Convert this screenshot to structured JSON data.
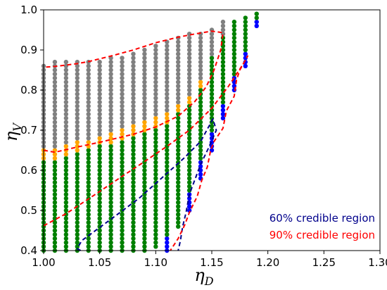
{
  "chart_data": {
    "type": "scatter",
    "title": "",
    "xlabel": "η_D",
    "ylabel": "η_V",
    "xlabel_main": "η",
    "xlabel_sub": "D",
    "ylabel_main": "η",
    "ylabel_sub": "V",
    "xlim": [
      1.0,
      1.3
    ],
    "ylim": [
      0.4,
      1.0
    ],
    "x_ticks": [
      "1.00",
      "1.05",
      "1.10",
      "1.15",
      "1.20",
      "1.25",
      "1.30"
    ],
    "y_ticks": [
      "0.4",
      "0.5",
      "0.6",
      "0.7",
      "0.8",
      "0.9",
      "1.0"
    ],
    "grid": false,
    "point_spacing_y": 0.01,
    "colors": {
      "gray": "#808080",
      "orange": "#ffa500",
      "green": "#008000",
      "blue": "#0000ff",
      "ci60": "#00008b",
      "ci90": "#ff0000"
    },
    "columns": [
      {
        "x": 1.0,
        "segments": [
          [
            "green",
            0.4,
            0.62
          ],
          [
            "orange",
            0.63,
            0.65
          ],
          [
            "gray",
            0.66,
            0.86
          ]
        ]
      },
      {
        "x": 1.01,
        "segments": [
          [
            "green",
            0.4,
            0.62
          ],
          [
            "orange",
            0.63,
            0.65
          ],
          [
            "gray",
            0.66,
            0.87
          ]
        ]
      },
      {
        "x": 1.02,
        "segments": [
          [
            "green",
            0.4,
            0.63
          ],
          [
            "orange",
            0.64,
            0.66
          ],
          [
            "gray",
            0.67,
            0.87
          ]
        ]
      },
      {
        "x": 1.03,
        "segments": [
          [
            "green",
            0.4,
            0.64
          ],
          [
            "orange",
            0.65,
            0.67
          ],
          [
            "gray",
            0.68,
            0.87
          ]
        ]
      },
      {
        "x": 1.04,
        "segments": [
          [
            "green",
            0.4,
            0.65
          ],
          [
            "orange",
            0.66,
            0.67
          ],
          [
            "gray",
            0.68,
            0.87
          ]
        ]
      },
      {
        "x": 1.05,
        "segments": [
          [
            "green",
            0.4,
            0.66
          ],
          [
            "orange",
            0.67,
            0.68
          ],
          [
            "gray",
            0.69,
            0.87
          ]
        ]
      },
      {
        "x": 1.06,
        "segments": [
          [
            "green",
            0.4,
            0.66
          ],
          [
            "orange",
            0.67,
            0.69
          ],
          [
            "gray",
            0.7,
            0.88
          ]
        ]
      },
      {
        "x": 1.07,
        "segments": [
          [
            "green",
            0.4,
            0.67
          ],
          [
            "orange",
            0.68,
            0.7
          ],
          [
            "gray",
            0.71,
            0.88
          ]
        ]
      },
      {
        "x": 1.08,
        "segments": [
          [
            "green",
            0.4,
            0.68
          ],
          [
            "orange",
            0.69,
            0.71
          ],
          [
            "gray",
            0.72,
            0.89
          ]
        ]
      },
      {
        "x": 1.09,
        "segments": [
          [
            "green",
            0.4,
            0.69
          ],
          [
            "orange",
            0.7,
            0.72
          ],
          [
            "gray",
            0.73,
            0.9
          ]
        ]
      },
      {
        "x": 1.1,
        "segments": [
          [
            "green",
            0.41,
            0.7
          ],
          [
            "orange",
            0.71,
            0.73
          ],
          [
            "gray",
            0.74,
            0.91
          ]
        ]
      },
      {
        "x": 1.11,
        "segments": [
          [
            "blue",
            0.4,
            0.43
          ],
          [
            "green",
            0.44,
            0.71
          ],
          [
            "orange",
            0.72,
            0.74
          ],
          [
            "gray",
            0.75,
            0.92
          ]
        ]
      },
      {
        "x": 1.12,
        "segments": [
          [
            "green",
            0.46,
            0.74
          ],
          [
            "orange",
            0.75,
            0.76
          ],
          [
            "gray",
            0.77,
            0.93
          ]
        ]
      },
      {
        "x": 1.13,
        "segments": [
          [
            "blue",
            0.5,
            0.54
          ],
          [
            "green",
            0.55,
            0.76
          ],
          [
            "orange",
            0.77,
            0.78
          ],
          [
            "gray",
            0.79,
            0.94
          ]
        ]
      },
      {
        "x": 1.14,
        "segments": [
          [
            "blue",
            0.58,
            0.62
          ],
          [
            "green",
            0.63,
            0.8
          ],
          [
            "orange",
            0.81,
            0.82
          ],
          [
            "gray",
            0.83,
            0.94
          ]
        ]
      },
      {
        "x": 1.15,
        "segments": [
          [
            "blue",
            0.65,
            0.69
          ],
          [
            "green",
            0.7,
            0.88
          ],
          [
            "gray",
            0.89,
            0.95
          ]
        ]
      },
      {
        "x": 1.16,
        "segments": [
          [
            "blue",
            0.73,
            0.76
          ],
          [
            "green",
            0.77,
            0.93
          ],
          [
            "gray",
            0.94,
            0.97
          ]
        ]
      },
      {
        "x": 1.17,
        "segments": [
          [
            "blue",
            0.8,
            0.83
          ],
          [
            "green",
            0.84,
            0.97
          ]
        ]
      },
      {
        "x": 1.18,
        "segments": [
          [
            "blue",
            0.86,
            0.89
          ],
          [
            "green",
            0.9,
            0.98
          ]
        ]
      },
      {
        "x": 1.19,
        "segments": [
          [
            "blue",
            0.96,
            0.97
          ],
          [
            "green",
            0.98,
            0.99
          ]
        ]
      }
    ],
    "contours": [
      {
        "name": "60% credible region",
        "color": "#00008b",
        "points": [
          [
            1.033,
            0.4
          ],
          [
            1.03,
            0.405
          ],
          [
            1.034,
            0.425
          ],
          [
            1.06,
            0.478
          ],
          [
            1.085,
            0.53
          ],
          [
            1.105,
            0.58
          ],
          [
            1.125,
            0.63
          ],
          [
            1.14,
            0.672
          ],
          [
            1.151,
            0.728
          ],
          [
            1.154,
            0.7
          ],
          [
            1.147,
            0.655
          ],
          [
            1.14,
            0.615
          ],
          [
            1.136,
            0.585
          ],
          [
            1.13,
            0.54
          ],
          [
            1.127,
            0.495
          ],
          [
            1.124,
            0.46
          ],
          [
            1.122,
            0.425
          ],
          [
            1.12,
            0.4
          ]
        ]
      },
      {
        "name": "90% credible region",
        "color": "#ff0000",
        "points": [
          [
            1.0,
            0.462
          ],
          [
            1.02,
            0.492
          ],
          [
            1.045,
            0.538
          ],
          [
            1.07,
            0.585
          ],
          [
            1.09,
            0.622
          ],
          [
            1.11,
            0.66
          ],
          [
            1.13,
            0.7
          ],
          [
            1.15,
            0.755
          ],
          [
            1.165,
            0.81
          ],
          [
            1.178,
            0.865
          ],
          [
            1.182,
            0.885
          ],
          [
            1.18,
            0.875
          ],
          [
            1.175,
            0.85
          ],
          [
            1.172,
            0.825
          ],
          [
            1.17,
            0.785
          ],
          [
            1.163,
            0.748
          ],
          [
            1.16,
            0.705
          ],
          [
            1.152,
            0.672
          ],
          [
            1.149,
            0.65
          ],
          [
            1.146,
            0.608
          ],
          [
            1.141,
            0.575
          ],
          [
            1.137,
            0.535
          ],
          [
            1.13,
            0.495
          ],
          [
            1.126,
            0.465
          ],
          [
            1.12,
            0.43
          ],
          [
            1.113,
            0.4
          ]
        ]
      },
      {
        "name": "90% upper band",
        "color": "#ff0000",
        "points": [
          [
            1.0,
            0.65
          ],
          [
            1.01,
            0.645
          ],
          [
            1.03,
            0.658
          ],
          [
            1.05,
            0.67
          ],
          [
            1.08,
            0.69
          ],
          [
            1.1,
            0.708
          ],
          [
            1.12,
            0.735
          ],
          [
            1.135,
            0.772
          ],
          [
            1.145,
            0.808
          ],
          [
            1.152,
            0.85
          ],
          [
            1.158,
            0.9
          ],
          [
            1.16,
            0.943
          ],
          [
            1.15,
            0.947
          ],
          [
            1.135,
            0.94
          ],
          [
            1.12,
            0.932
          ],
          [
            1.1,
            0.918
          ],
          [
            1.08,
            0.9
          ],
          [
            1.06,
            0.885
          ],
          [
            1.04,
            0.871
          ],
          [
            1.03,
            0.866
          ],
          [
            1.01,
            0.859
          ],
          [
            1.0,
            0.857
          ]
        ]
      }
    ],
    "annotations": [
      {
        "text": "60% credible region",
        "color": "#00008b"
      },
      {
        "text": "90% credible region",
        "color": "#ff0000"
      }
    ]
  }
}
